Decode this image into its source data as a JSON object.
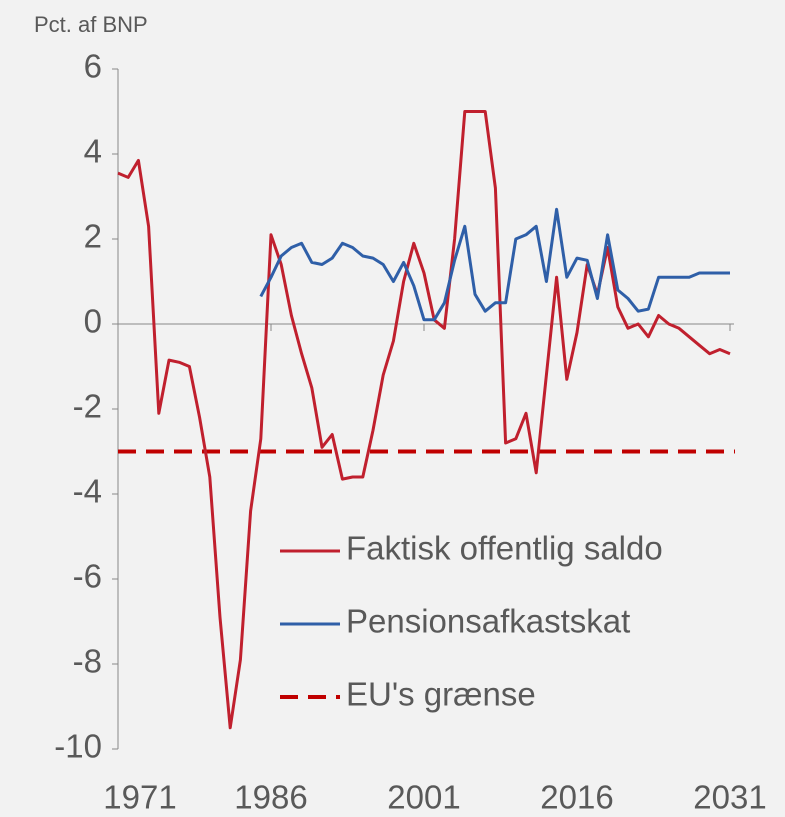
{
  "chart_data": {
    "type": "line",
    "y_axis_label": "Pct. af BNP",
    "x": [
      1971,
      1972,
      1973,
      1974,
      1975,
      1976,
      1977,
      1978,
      1979,
      1980,
      1981,
      1982,
      1983,
      1984,
      1985,
      1986,
      1987,
      1988,
      1989,
      1990,
      1991,
      1992,
      1993,
      1994,
      1995,
      1996,
      1997,
      1998,
      1999,
      2000,
      2001,
      2002,
      2003,
      2004,
      2005,
      2006,
      2007,
      2008,
      2009,
      2010,
      2011,
      2012,
      2013,
      2014,
      2015,
      2016,
      2017,
      2018,
      2019,
      2020,
      2021,
      2022,
      2023,
      2024,
      2025,
      2026,
      2027,
      2028,
      2029,
      2030,
      2031
    ],
    "series": [
      {
        "name": "Faktisk offentlig saldo",
        "color": "#c0202e",
        "values": [
          3.55,
          3.45,
          3.85,
          2.3,
          -2.1,
          -0.85,
          -0.9,
          -1.0,
          -2.2,
          -3.6,
          -6.9,
          -9.5,
          -7.9,
          -4.4,
          -2.7,
          2.1,
          1.4,
          0.2,
          -0.7,
          -1.5,
          -2.9,
          -2.6,
          -3.65,
          -3.6,
          -3.6,
          -2.5,
          -1.2,
          -0.4,
          1.0,
          1.9,
          1.2,
          0.1,
          -0.1,
          2.0,
          5.0,
          5.0,
          5.0,
          3.2,
          -2.8,
          -2.7,
          -2.1,
          -3.5,
          -1.2,
          1.1,
          -1.3,
          -0.2,
          1.4,
          0.7,
          1.8,
          0.4,
          -0.1,
          0.0,
          -0.3,
          0.2,
          0.0,
          -0.1,
          -0.3,
          -0.5,
          -0.7,
          -0.6,
          -0.7
        ]
      },
      {
        "name": "Pensionsafkastskat",
        "color": "#2f5fa8",
        "values": [
          null,
          null,
          null,
          null,
          null,
          null,
          null,
          null,
          null,
          null,
          null,
          null,
          null,
          null,
          0.65,
          1.1,
          1.6,
          1.8,
          1.9,
          1.45,
          1.4,
          1.55,
          1.9,
          1.8,
          1.6,
          1.55,
          1.4,
          1.0,
          1.45,
          0.9,
          0.1,
          0.1,
          0.5,
          1.5,
          2.3,
          0.7,
          0.3,
          0.5,
          0.5,
          2.0,
          2.1,
          2.3,
          1.0,
          2.7,
          1.1,
          1.55,
          1.5,
          0.6,
          2.1,
          0.8,
          0.6,
          0.3,
          0.35,
          1.1,
          1.1,
          1.1,
          1.1,
          1.2,
          1.2,
          1.2,
          1.2
        ]
      }
    ],
    "reference_lines": [
      {
        "name": "EU's grænse",
        "value": -3,
        "color": "#c00000",
        "dashed": true
      }
    ],
    "xlim": [
      1971,
      2031
    ],
    "xticks": [
      1971,
      1986,
      2001,
      2016,
      2031
    ],
    "ylim": [
      -10,
      6
    ],
    "yticks": [
      -10,
      -8,
      -6,
      -4,
      -2,
      0,
      2,
      4,
      6
    ],
    "grid": false
  }
}
